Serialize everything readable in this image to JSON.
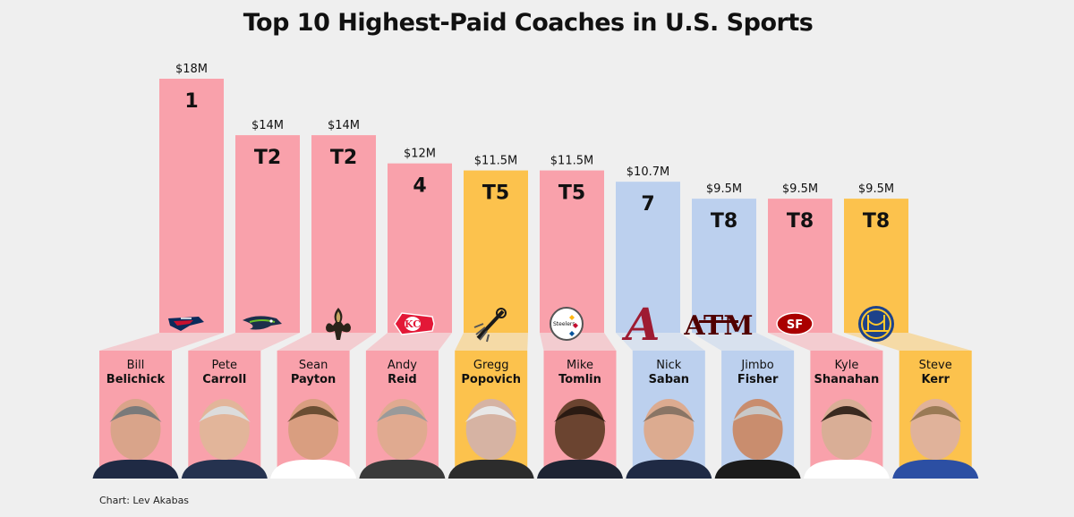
{
  "title": "Top 10 Highest-Paid Coaches in U.S. Sports",
  "credit": "Chart: Lev Akabas",
  "colors": {
    "NFL": "#f9a1ab",
    "NBA": "#fcc24d",
    "NCAA": "#bcd0ee",
    "background": "#efefef"
  },
  "chart_data": {
    "type": "bar",
    "title": "Top 10 Highest-Paid Coaches in U.S. Sports",
    "unit": "$M",
    "ylim": [
      0,
      18
    ],
    "bars": [
      {
        "rank": "1",
        "value": 18,
        "value_label": "$18M",
        "first": "Bill",
        "last": "Belichick",
        "league": "NFL",
        "logo": "patriots-logo-icon"
      },
      {
        "rank": "T2",
        "value": 14,
        "value_label": "$14M",
        "first": "Pete",
        "last": "Carroll",
        "league": "NFL",
        "logo": "seahawks-logo-icon"
      },
      {
        "rank": "T2",
        "value": 14,
        "value_label": "$14M",
        "first": "Sean",
        "last": "Payton",
        "league": "NFL",
        "logo": "saints-logo-icon"
      },
      {
        "rank": "4",
        "value": 12,
        "value_label": "$12M",
        "first": "Andy",
        "last": "Reid",
        "league": "NFL",
        "logo": "chiefs-logo-icon"
      },
      {
        "rank": "T5",
        "value": 11.5,
        "value_label": "$11.5M",
        "first": "Gregg",
        "last": "Popovich",
        "league": "NBA",
        "logo": "spurs-logo-icon"
      },
      {
        "rank": "T5",
        "value": 11.5,
        "value_label": "$11.5M",
        "first": "Mike",
        "last": "Tomlin",
        "league": "NFL",
        "logo": "steelers-logo-icon"
      },
      {
        "rank": "7",
        "value": 10.7,
        "value_label": "$10.7M",
        "first": "Nick",
        "last": "Saban",
        "league": "NCAA",
        "logo": "alabama-logo-icon"
      },
      {
        "rank": "T8",
        "value": 9.5,
        "value_label": "$9.5M",
        "first": "Jimbo",
        "last": "Fisher",
        "league": "NCAA",
        "logo": "texas-am-logo-icon"
      },
      {
        "rank": "T8",
        "value": 9.5,
        "value_label": "$9.5M",
        "first": "Kyle",
        "last": "Shanahan",
        "league": "NFL",
        "logo": "49ers-logo-icon"
      },
      {
        "rank": "T8",
        "value": 9.5,
        "value_label": "$9.5M",
        "first": "Steve",
        "last": "Kerr",
        "league": "NBA",
        "logo": "warriors-logo-icon"
      }
    ]
  }
}
